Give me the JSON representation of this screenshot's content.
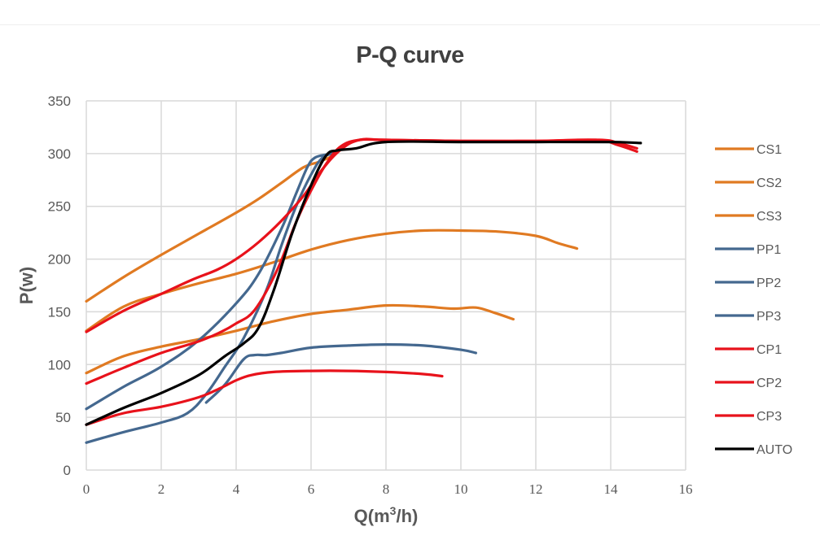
{
  "chart_data": {
    "type": "line",
    "title": "P-Q curve",
    "xlabel": "Q(m³/h)",
    "ylabel": "P(w)",
    "xlim": [
      0,
      16
    ],
    "ylim": [
      0,
      350
    ],
    "xticks": [
      "0",
      "2",
      "4",
      "6",
      "8",
      "10",
      "12",
      "14",
      "16"
    ],
    "yticks": [
      "0",
      "50",
      "100",
      "150",
      "200",
      "250",
      "300",
      "350"
    ],
    "grid": true,
    "legend_position": "right",
    "series": [
      {
        "name": "CS1",
        "color": "#E07A22",
        "x": [
          0,
          1,
          2,
          3,
          4,
          4.6,
          5.2,
          5.8,
          6.2,
          6.6
        ],
        "y": [
          160,
          183,
          204,
          224,
          244,
          257,
          272,
          287,
          292,
          298
        ]
      },
      {
        "name": "CS2",
        "color": "#E07A22",
        "x": [
          0,
          1,
          2,
          3,
          4,
          5,
          6,
          7,
          8,
          9,
          10,
          11,
          12,
          12.6,
          13.1
        ],
        "y": [
          132,
          155,
          167,
          177,
          186,
          197,
          209,
          218,
          224,
          227,
          227,
          226,
          222,
          215,
          210
        ]
      },
      {
        "name": "CS3",
        "color": "#E07A22",
        "x": [
          0,
          1,
          2,
          3,
          4,
          5,
          6,
          7,
          8,
          9,
          9.8,
          10.4,
          10.9,
          11.4
        ],
        "y": [
          92,
          108,
          117,
          124,
          132,
          141,
          148,
          152,
          156,
          155,
          153,
          154,
          149,
          143
        ]
      },
      {
        "name": "PP1",
        "color": "#44688F",
        "x": [
          0,
          1,
          2,
          3,
          4,
          4.6,
          5.2,
          5.6,
          5.9,
          6.1,
          6.4,
          6.6
        ],
        "y": [
          58,
          79,
          98,
          123,
          158,
          186,
          228,
          262,
          287,
          296,
          299,
          300
        ]
      },
      {
        "name": "PP2",
        "color": "#44688F",
        "x": [
          0,
          1,
          2,
          2.7,
          3.2,
          3.7,
          4.2,
          4.8,
          5.2,
          5.6,
          6.0,
          6.3,
          6.6
        ],
        "y": [
          26,
          36,
          45,
          54,
          72,
          98,
          125,
          170,
          212,
          250,
          280,
          296,
          300
        ]
      },
      {
        "name": "PP3",
        "color": "#44688F",
        "x": [
          3.2,
          3.7,
          4.2,
          4.5,
          4.8,
          5.2,
          6,
          7,
          8,
          9,
          10,
          10.4
        ],
        "y": [
          64,
          81,
          105,
          109,
          109,
          111,
          116,
          118,
          119,
          118,
          114,
          111
        ]
      },
      {
        "name": "CP1",
        "color": "#E8121B",
        "x": [
          0,
          1,
          2,
          2.8,
          3.5,
          4,
          4.6,
          5.2,
          5.8,
          6.3,
          6.8,
          7.3,
          8,
          10,
          12,
          13.6,
          14.2,
          14.7
        ],
        "y": [
          131,
          151,
          167,
          180,
          190,
          200,
          216,
          236,
          260,
          285,
          304,
          313,
          313,
          312,
          312,
          313,
          308,
          302
        ]
      },
      {
        "name": "CP2",
        "color": "#E8121B",
        "x": [
          0,
          1,
          2,
          3,
          3.6,
          4,
          4.5,
          5.1,
          5.6,
          6.0,
          6.4,
          6.8,
          7.3,
          8,
          10,
          12,
          13.7,
          14.2,
          14.7
        ],
        "y": [
          82,
          97,
          111,
          122,
          131,
          139,
          152,
          190,
          235,
          265,
          290,
          307,
          313,
          313,
          312,
          312,
          313,
          310,
          305
        ]
      },
      {
        "name": "CP3",
        "color": "#E8121B",
        "x": [
          0,
          1,
          2,
          3,
          3.6,
          4,
          4.4,
          5,
          6,
          7,
          8,
          9,
          9.5
        ],
        "y": [
          43,
          54,
          60,
          69,
          78,
          85,
          90,
          93,
          94,
          94,
          93,
          91,
          89
        ]
      },
      {
        "name": "AUTO",
        "color": "#000000",
        "x": [
          0,
          1,
          2,
          3,
          3.7,
          4.2,
          4.6,
          5.0,
          5.5,
          6.0,
          6.4,
          6.7,
          7.2,
          8,
          10,
          12,
          14,
          14.8
        ],
        "y": [
          43,
          59,
          73,
          90,
          108,
          120,
          135,
          170,
          225,
          270,
          298,
          303,
          305,
          311,
          311,
          311,
          311,
          310
        ]
      }
    ]
  }
}
